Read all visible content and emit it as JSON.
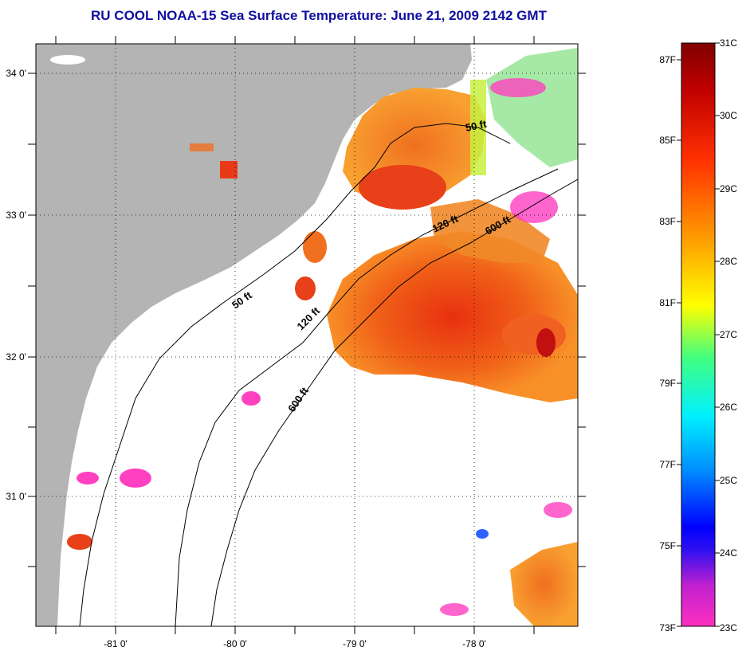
{
  "title": "RU COOL  NOAA-15  Sea Surface Temperature:  June 21, 2009 2142 GMT",
  "map": {
    "longitude_ticks": [
      "-81 0'",
      "-80 0'",
      "-79 0'",
      "-78 0'"
    ],
    "latitude_ticks": [
      "34 0'",
      "33 0'",
      "32 0'",
      "31 0'"
    ],
    "depth_contours": [
      "50 ft",
      "120 ft",
      "600 ft"
    ],
    "contour_labels": [
      {
        "text": "50 ft",
        "near": "offshore-north"
      },
      {
        "text": "120 ft",
        "near": "offshore-north"
      },
      {
        "text": "600 ft",
        "near": "offshore-north"
      },
      {
        "text": "50 ft",
        "near": "offshore-mid"
      },
      {
        "text": "120 ft",
        "near": "offshore-mid"
      },
      {
        "text": "600 ft",
        "near": "offshore-south"
      }
    ],
    "colors": {
      "land": "#b4b4b4",
      "no_data": "#ffffff",
      "grid": "#000000"
    }
  },
  "colorbar": {
    "celsius_labels": [
      "31C",
      "30C",
      "29C",
      "28C",
      "27C",
      "26C",
      "25C",
      "24C",
      "23C"
    ],
    "fahrenheit_labels": [
      "87F",
      "85F",
      "83F",
      "81F",
      "79F",
      "77F",
      "75F",
      "73F"
    ],
    "celsius_range": [
      23,
      31
    ],
    "stops": [
      "#ff30c0",
      "#7020c0",
      "#0000ff",
      "#0090ff",
      "#00f0ff",
      "#40ff80",
      "#ffff00",
      "#ffa000",
      "#ff3000",
      "#c00000",
      "#800000"
    ]
  }
}
